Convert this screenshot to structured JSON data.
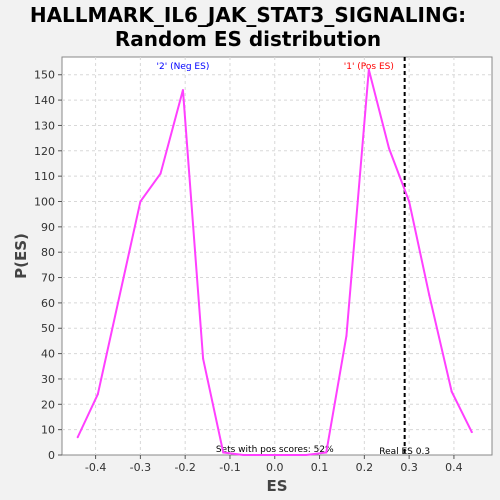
{
  "chart_data": {
    "type": "line",
    "title_lines": [
      "HALLMARK_IL6_JAK_STAT3_SIGNALING:",
      "Random ES distribution"
    ],
    "xlabel": "ES",
    "ylabel": "P(ES)",
    "xlim": [
      -0.475,
      0.485
    ],
    "ylim": [
      0,
      157
    ],
    "xticks": [
      -0.4,
      -0.3,
      -0.2,
      -0.1,
      0.0,
      0.1,
      0.2,
      0.3,
      0.4
    ],
    "xtick_labels": [
      "-0.4",
      "-0.3",
      "-0.2",
      "-0.1",
      "0.0",
      "0.1",
      "0.2",
      "0.3",
      "0.4"
    ],
    "yticks": [
      0,
      10,
      20,
      30,
      40,
      50,
      60,
      70,
      80,
      90,
      100,
      110,
      120,
      130,
      140,
      150
    ],
    "ytick_labels": [
      "0",
      "10",
      "20",
      "30",
      "40",
      "50",
      "60",
      "70",
      "80",
      "90",
      "100",
      "110",
      "120",
      "130",
      "140",
      "150"
    ],
    "grid": true,
    "series": [
      {
        "color": "#ff40ff",
        "x": [
          -0.44,
          -0.395,
          -0.35,
          -0.3,
          -0.255,
          -0.205,
          -0.16,
          -0.115,
          -0.07,
          0.0,
          0.07,
          0.115,
          0.16,
          0.21,
          0.255,
          0.3,
          0.345,
          0.395,
          0.44
        ],
        "y": [
          7,
          24,
          60,
          100,
          111,
          144,
          38,
          1,
          0,
          0,
          0,
          1,
          47,
          152,
          121,
          100,
          63,
          25,
          9
        ]
      }
    ],
    "annotations": {
      "neg_label": "'2' (Neg ES)",
      "pos_label": "'1' (Pos ES)",
      "pos_scores_label": "Sets with pos scores: 52%",
      "real_es_label": "Real ES 0.3",
      "real_es_value": 0.29
    },
    "colors": {
      "line": "#ff40ff",
      "neg_label": "#0000ff",
      "pos_label": "#ff0000",
      "grid": "#d8d8d8",
      "background": "#ffffff",
      "page_background": "#f2f2f2"
    }
  }
}
